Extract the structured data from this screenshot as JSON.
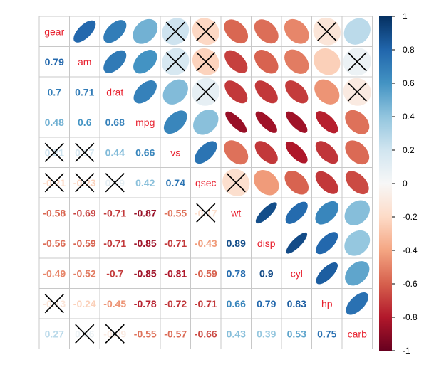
{
  "chart_data": {
    "type": "heatmap",
    "variables": [
      "gear",
      "am",
      "drat",
      "mpg",
      "vs",
      "qsec",
      "wt",
      "disp",
      "cyl",
      "hp",
      "carb"
    ],
    "correlation_matrix": [
      [
        1,
        0.79,
        0.7,
        0.48,
        0.21,
        -0.21,
        -0.58,
        -0.56,
        -0.49,
        -0.13,
        0.27
      ],
      [
        0.79,
        1,
        0.71,
        0.6,
        0.17,
        -0.23,
        -0.69,
        -0.59,
        -0.52,
        -0.24,
        0.06
      ],
      [
        0.7,
        0.71,
        1,
        0.68,
        0.44,
        0.09,
        -0.71,
        -0.71,
        -0.7,
        -0.45,
        -0.09
      ],
      [
        0.48,
        0.6,
        0.68,
        1,
        0.66,
        0.42,
        -0.87,
        -0.85,
        -0.85,
        -0.78,
        -0.55
      ],
      [
        0.21,
        0.17,
        0.44,
        0.66,
        1,
        0.74,
        -0.55,
        -0.71,
        -0.81,
        -0.72,
        -0.57
      ],
      [
        -0.21,
        -0.23,
        0.09,
        0.42,
        0.74,
        1,
        -0.17,
        -0.43,
        -0.59,
        -0.71,
        -0.66
      ],
      [
        -0.58,
        -0.69,
        -0.71,
        -0.87,
        -0.55,
        -0.17,
        1,
        0.89,
        0.78,
        0.66,
        0.43
      ],
      [
        -0.56,
        -0.59,
        -0.71,
        -0.85,
        -0.71,
        -0.43,
        0.89,
        1,
        0.9,
        0.79,
        0.39
      ],
      [
        -0.49,
        -0.52,
        -0.7,
        -0.85,
        -0.81,
        -0.59,
        0.78,
        0.9,
        1,
        0.83,
        0.53
      ],
      [
        -0.13,
        -0.24,
        -0.45,
        -0.78,
        -0.72,
        -0.71,
        0.66,
        0.79,
        0.83,
        1,
        0.75
      ],
      [
        0.27,
        0.06,
        -0.09,
        -0.55,
        -0.57,
        -0.66,
        0.43,
        0.39,
        0.53,
        0.75,
        1
      ]
    ],
    "insignificant_pairs": [
      [
        "gear",
        "vs"
      ],
      [
        "gear",
        "qsec"
      ],
      [
        "gear",
        "hp"
      ],
      [
        "am",
        "vs"
      ],
      [
        "am",
        "qsec"
      ],
      [
        "am",
        "carb"
      ],
      [
        "drat",
        "qsec"
      ],
      [
        "drat",
        "carb"
      ],
      [
        "qsec",
        "wt"
      ]
    ],
    "upper_triangle_glyph": "ellipse",
    "lower_triangle_glyph": "number",
    "insignificant_marker": "X",
    "colorbar": {
      "range": [
        -1,
        1
      ],
      "ticks": [
        1,
        0.8,
        0.6,
        0.4,
        0.2,
        0,
        -0.2,
        -0.4,
        -0.6,
        -0.8,
        -1
      ],
      "tick_labels": [
        "1",
        "0.8",
        "0.6",
        "0.4",
        "0.2",
        "0",
        "-0.2",
        "-0.4",
        "-0.6",
        "-0.8",
        "-1"
      ],
      "placement": "right"
    },
    "colors": {
      "negative_end": "#67001F",
      "mid": "#F7F7F7",
      "positive_end": "#053061",
      "diagonal_label": "#E8212F",
      "grid": "#C8C8C8"
    }
  }
}
